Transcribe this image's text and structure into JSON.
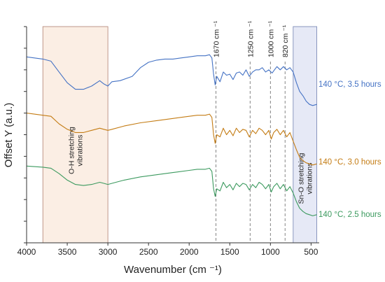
{
  "chart_data": {
    "type": "line",
    "title": "",
    "xlabel": "Wavenumber (cm ⁻¹)",
    "ylabel": "Offset Y (a.u.)",
    "xlim": [
      4000,
      400
    ],
    "x_reversed": true,
    "x_ticks": [
      4000,
      3500,
      3000,
      2500,
      2000,
      1500,
      1000,
      500
    ],
    "grid": false,
    "legend": "inline-right",
    "shaded_regions": [
      {
        "from": 3800,
        "to": 3000,
        "color": "#fbeee4",
        "label_lines": [
          "O-H stretching",
          "vibrations"
        ]
      },
      {
        "from": 720,
        "to": 430,
        "color": "#e6e9f6",
        "label_lines": [
          "Sn-O stretching",
          "vibrations"
        ]
      }
    ],
    "reference_lines": [
      {
        "x": 1670,
        "label": "1670 cm ⁻¹"
      },
      {
        "x": 1250,
        "label": "1250 cm ⁻¹"
      },
      {
        "x": 1000,
        "label": "1000 cm ⁻¹"
      },
      {
        "x": 820,
        "label": "820 cm ⁻¹"
      }
    ],
    "series": [
      {
        "name": "140 °C, 3.5 hours",
        "color": "#4472c4",
        "points": [
          [
            4000,
            0.86
          ],
          [
            3800,
            0.85
          ],
          [
            3700,
            0.84
          ],
          [
            3600,
            0.79
          ],
          [
            3500,
            0.74
          ],
          [
            3400,
            0.71
          ],
          [
            3300,
            0.71
          ],
          [
            3200,
            0.725
          ],
          [
            3100,
            0.75
          ],
          [
            3050,
            0.735
          ],
          [
            3000,
            0.725
          ],
          [
            2950,
            0.745
          ],
          [
            2850,
            0.75
          ],
          [
            2700,
            0.77
          ],
          [
            2600,
            0.81
          ],
          [
            2500,
            0.835
          ],
          [
            2400,
            0.845
          ],
          [
            2300,
            0.85
          ],
          [
            2200,
            0.85
          ],
          [
            2100,
            0.855
          ],
          [
            2000,
            0.86
          ],
          [
            1900,
            0.865
          ],
          [
            1800,
            0.865
          ],
          [
            1750,
            0.87
          ],
          [
            1720,
            0.855
          ],
          [
            1700,
            0.78
          ],
          [
            1680,
            0.73
          ],
          [
            1660,
            0.77
          ],
          [
            1620,
            0.745
          ],
          [
            1580,
            0.79
          ],
          [
            1540,
            0.775
          ],
          [
            1500,
            0.78
          ],
          [
            1460,
            0.755
          ],
          [
            1420,
            0.785
          ],
          [
            1380,
            0.79
          ],
          [
            1340,
            0.775
          ],
          [
            1300,
            0.8
          ],
          [
            1260,
            0.77
          ],
          [
            1220,
            0.79
          ],
          [
            1180,
            0.8
          ],
          [
            1140,
            0.8
          ],
          [
            1100,
            0.81
          ],
          [
            1060,
            0.79
          ],
          [
            1020,
            0.8
          ],
          [
            980,
            0.785
          ],
          [
            950,
            0.8
          ],
          [
            920,
            0.815
          ],
          [
            880,
            0.8
          ],
          [
            840,
            0.815
          ],
          [
            800,
            0.8
          ],
          [
            760,
            0.81
          ],
          [
            720,
            0.79
          ],
          [
            680,
            0.74
          ],
          [
            640,
            0.7
          ],
          [
            600,
            0.68
          ],
          [
            560,
            0.655
          ],
          [
            520,
            0.64
          ],
          [
            480,
            0.635
          ],
          [
            430,
            0.64
          ]
        ]
      },
      {
        "name": "140 °C, 3.0 hours",
        "color": "#c47c14",
        "points": [
          [
            4000,
            0.6
          ],
          [
            3800,
            0.59
          ],
          [
            3700,
            0.585
          ],
          [
            3600,
            0.55
          ],
          [
            3500,
            0.525
          ],
          [
            3400,
            0.51
          ],
          [
            3300,
            0.51
          ],
          [
            3200,
            0.52
          ],
          [
            3100,
            0.53
          ],
          [
            3050,
            0.525
          ],
          [
            3000,
            0.52
          ],
          [
            2950,
            0.525
          ],
          [
            2800,
            0.54
          ],
          [
            2600,
            0.555
          ],
          [
            2400,
            0.565
          ],
          [
            2200,
            0.575
          ],
          [
            2000,
            0.585
          ],
          [
            1900,
            0.59
          ],
          [
            1800,
            0.59
          ],
          [
            1750,
            0.595
          ],
          [
            1720,
            0.58
          ],
          [
            1700,
            0.5
          ],
          [
            1680,
            0.46
          ],
          [
            1660,
            0.5
          ],
          [
            1620,
            0.49
          ],
          [
            1580,
            0.53
          ],
          [
            1540,
            0.5
          ],
          [
            1500,
            0.52
          ],
          [
            1460,
            0.495
          ],
          [
            1420,
            0.53
          ],
          [
            1380,
            0.51
          ],
          [
            1340,
            0.525
          ],
          [
            1300,
            0.52
          ],
          [
            1260,
            0.49
          ],
          [
            1220,
            0.52
          ],
          [
            1180,
            0.505
          ],
          [
            1140,
            0.53
          ],
          [
            1100,
            0.52
          ],
          [
            1060,
            0.5
          ],
          [
            1020,
            0.52
          ],
          [
            990,
            0.48
          ],
          [
            960,
            0.51
          ],
          [
            920,
            0.525
          ],
          [
            880,
            0.5
          ],
          [
            840,
            0.52
          ],
          [
            800,
            0.49
          ],
          [
            760,
            0.51
          ],
          [
            720,
            0.47
          ],
          [
            680,
            0.43
          ],
          [
            640,
            0.395
          ],
          [
            600,
            0.38
          ],
          [
            560,
            0.37
          ],
          [
            520,
            0.365
          ],
          [
            480,
            0.36
          ],
          [
            430,
            0.365
          ]
        ]
      },
      {
        "name": "140 °C, 2.5 hours",
        "color": "#3c9a5f",
        "points": [
          [
            4000,
            0.355
          ],
          [
            3800,
            0.35
          ],
          [
            3700,
            0.345
          ],
          [
            3600,
            0.32
          ],
          [
            3500,
            0.29
          ],
          [
            3400,
            0.27
          ],
          [
            3300,
            0.265
          ],
          [
            3200,
            0.27
          ],
          [
            3100,
            0.28
          ],
          [
            3050,
            0.275
          ],
          [
            3000,
            0.27
          ],
          [
            2950,
            0.275
          ],
          [
            2800,
            0.29
          ],
          [
            2600,
            0.305
          ],
          [
            2400,
            0.315
          ],
          [
            2200,
            0.325
          ],
          [
            2000,
            0.335
          ],
          [
            1900,
            0.34
          ],
          [
            1800,
            0.34
          ],
          [
            1750,
            0.345
          ],
          [
            1720,
            0.33
          ],
          [
            1700,
            0.25
          ],
          [
            1680,
            0.215
          ],
          [
            1660,
            0.25
          ],
          [
            1620,
            0.24
          ],
          [
            1580,
            0.28
          ],
          [
            1540,
            0.255
          ],
          [
            1500,
            0.27
          ],
          [
            1460,
            0.245
          ],
          [
            1420,
            0.275
          ],
          [
            1380,
            0.26
          ],
          [
            1340,
            0.275
          ],
          [
            1300,
            0.27
          ],
          [
            1260,
            0.245
          ],
          [
            1220,
            0.27
          ],
          [
            1180,
            0.255
          ],
          [
            1140,
            0.28
          ],
          [
            1100,
            0.27
          ],
          [
            1060,
            0.25
          ],
          [
            1020,
            0.27
          ],
          [
            990,
            0.235
          ],
          [
            960,
            0.26
          ],
          [
            920,
            0.275
          ],
          [
            880,
            0.25
          ],
          [
            840,
            0.27
          ],
          [
            800,
            0.24
          ],
          [
            760,
            0.26
          ],
          [
            720,
            0.23
          ],
          [
            680,
            0.19
          ],
          [
            640,
            0.16
          ],
          [
            600,
            0.145
          ],
          [
            560,
            0.135
          ],
          [
            520,
            0.13
          ],
          [
            480,
            0.125
          ],
          [
            430,
            0.13
          ]
        ]
      }
    ]
  }
}
